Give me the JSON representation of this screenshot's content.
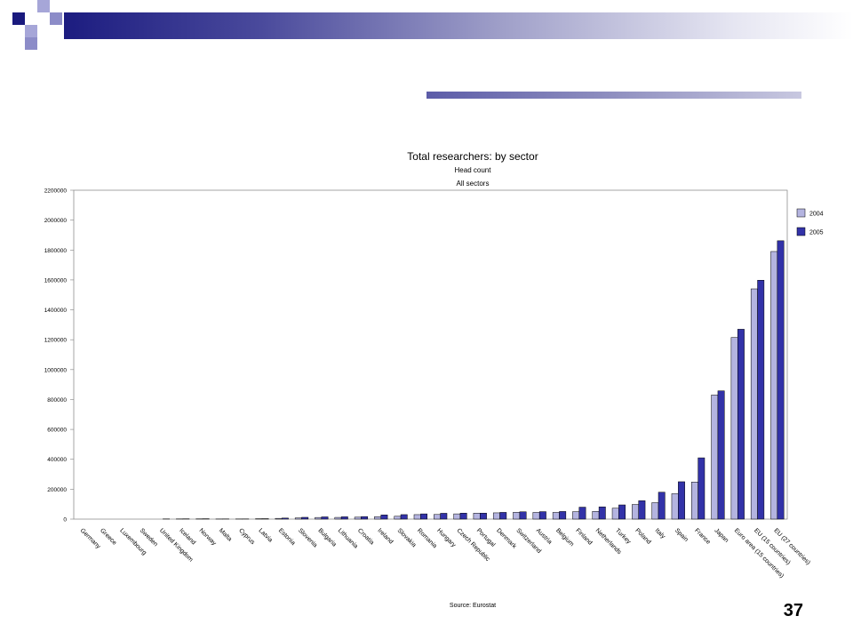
{
  "page": {
    "number": "37"
  },
  "colors": {
    "navy": "#1a1a7e",
    "lavender": "#a6a6d8",
    "periwinkle": "#8c8cc8",
    "series_2004": "#b4b4e0",
    "series_2005": "#3232a8"
  },
  "chart_data": {
    "type": "bar",
    "title": "Total researchers: by sector",
    "subtitle": "Head count",
    "subtitle2": "All sectors",
    "source": "Source: Eurostat",
    "xlabel": "",
    "ylabel": "",
    "ylim": [
      0,
      2200000
    ],
    "yticks": [
      0,
      200000,
      400000,
      600000,
      800000,
      1000000,
      1200000,
      1400000,
      1600000,
      1800000,
      2000000,
      2200000
    ],
    "legend_position": "right",
    "categories": [
      "Germany",
      "Greece",
      "Luxembourg",
      "Sweden",
      "United Kingdom",
      "Iceland",
      "Norway",
      "Malta",
      "Cyprus",
      "Latvia",
      "Estonia",
      "Slovenia",
      "Bulgaria",
      "Lithuania",
      "Croatia",
      "Ireland",
      "Slovakia",
      "Romania",
      "Hungary",
      "Czech Republic",
      "Portugal",
      "Denmark",
      "Switzerland",
      "Austria",
      "Belgium",
      "Finland",
      "Netherlands",
      "Turkey",
      "Poland",
      "Italy",
      "Spain",
      "France",
      "Japan",
      "Euro area (15 countries)",
      "EU (15 countries)",
      "EU (27 countries)"
    ],
    "series": [
      {
        "name": "2004",
        "values": [
          0,
          0,
          0,
          0,
          0,
          1500,
          1800,
          1000,
          1200,
          2500,
          5000,
          8000,
          11000,
          11500,
          13000,
          16000,
          19000,
          30000,
          31000,
          35000,
          40000,
          42000,
          46000,
          45000,
          45000,
          50000,
          52000,
          73000,
          98000,
          110000,
          170000,
          248000,
          830000,
          1215000,
          1540000,
          1790000
        ]
      },
      {
        "name": "2005",
        "values": [
          0,
          0,
          0,
          0,
          1500,
          2000,
          2500,
          1500,
          1500,
          3000,
          7000,
          12000,
          15000,
          15500,
          17000,
          28000,
          30000,
          35000,
          39000,
          40000,
          40000,
          45000,
          49000,
          50000,
          51000,
          80000,
          82000,
          95000,
          123000,
          180000,
          250000,
          410000,
          858000,
          1270000,
          1598000,
          1862000
        ]
      }
    ]
  }
}
